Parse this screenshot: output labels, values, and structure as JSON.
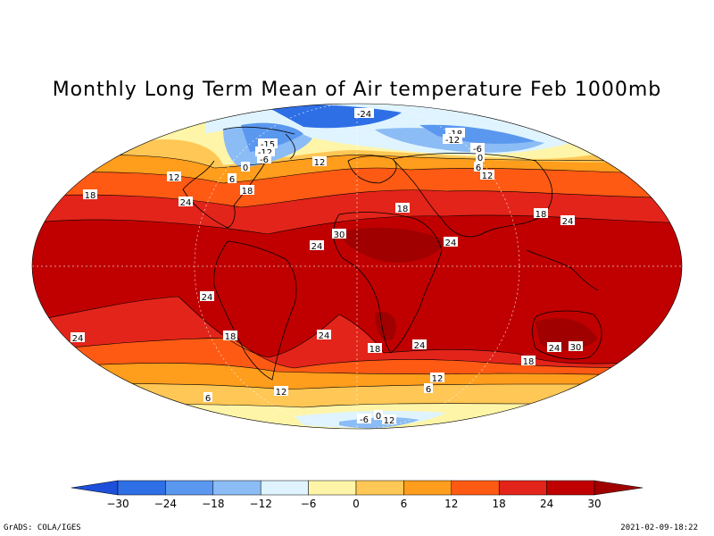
{
  "title": "Monthly Long Term Mean of Air temperature Feb 1000mb",
  "footer": {
    "left": "GrADS: COLA/IGES",
    "right": "2021-02-09-18:22"
  },
  "colorbar": {
    "ticks": [
      "−30",
      "−24",
      "−18",
      "−12",
      "−6",
      "0",
      "6",
      "12",
      "18",
      "24",
      "30"
    ],
    "colors": [
      "#1d4fd8",
      "#2f6fe6",
      "#5a97ef",
      "#8cbcf5",
      "#dff4ff",
      "#fff5a8",
      "#ffc755",
      "#ff9d1c",
      "#ff5a14",
      "#e3241a",
      "#c00000",
      "#a00000"
    ]
  },
  "contour_labels": [
    {
      "t": "-24"
    },
    {
      "t": "-18"
    },
    {
      "t": "-15"
    },
    {
      "t": "-12"
    },
    {
      "t": "-12"
    },
    {
      "t": "-6"
    },
    {
      "t": "-6"
    },
    {
      "t": "0"
    },
    {
      "t": "0"
    },
    {
      "t": "6"
    },
    {
      "t": "6"
    },
    {
      "t": "12"
    },
    {
      "t": "12"
    },
    {
      "t": "12"
    },
    {
      "t": "18"
    },
    {
      "t": "18"
    },
    {
      "t": "18"
    },
    {
      "t": "18"
    },
    {
      "t": "24"
    },
    {
      "t": "24"
    },
    {
      "t": "24"
    },
    {
      "t": "24"
    },
    {
      "t": "30"
    },
    {
      "t": "24"
    },
    {
      "t": "24"
    },
    {
      "t": "18"
    },
    {
      "t": "24"
    },
    {
      "t": "18"
    },
    {
      "t": "24"
    },
    {
      "t": "18"
    },
    {
      "t": "24"
    },
    {
      "t": "30"
    },
    {
      "t": "12"
    },
    {
      "t": "6"
    },
    {
      "t": "12"
    },
    {
      "t": "6"
    },
    {
      "t": "-6"
    },
    {
      "t": "0"
    },
    {
      "t": "12"
    }
  ]
}
